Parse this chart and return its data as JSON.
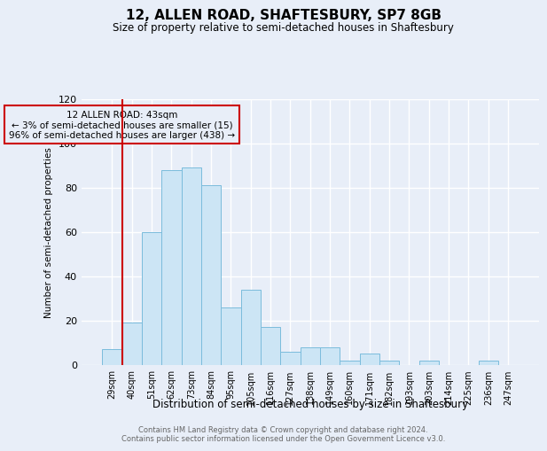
{
  "title": "12, ALLEN ROAD, SHAFTESBURY, SP7 8GB",
  "subtitle": "Size of property relative to semi-detached houses in Shaftesbury",
  "xlabel": "Distribution of semi-detached houses by size in Shaftesbury",
  "ylabel": "Number of semi-detached properties",
  "bar_labels": [
    "29sqm",
    "40sqm",
    "51sqm",
    "62sqm",
    "73sqm",
    "84sqm",
    "95sqm",
    "105sqm",
    "116sqm",
    "127sqm",
    "138sqm",
    "149sqm",
    "160sqm",
    "171sqm",
    "182sqm",
    "193sqm",
    "203sqm",
    "214sqm",
    "225sqm",
    "236sqm",
    "247sqm"
  ],
  "bar_values": [
    7,
    19,
    60,
    88,
    89,
    81,
    26,
    34,
    17,
    6,
    8,
    8,
    2,
    5,
    2,
    0,
    2,
    0,
    0,
    2,
    0
  ],
  "bar_color": "#cce5f5",
  "bar_edge_color": "#7bbcdc",
  "ylim": [
    0,
    120
  ],
  "yticks": [
    0,
    20,
    40,
    60,
    80,
    100,
    120
  ],
  "vline_x_index": 1,
  "vline_color": "#cc0000",
  "annotation_title": "12 ALLEN ROAD: 43sqm",
  "annotation_line1": "← 3% of semi-detached houses are smaller (15)",
  "annotation_line2": "96% of semi-detached houses are larger (438) →",
  "annotation_box_edge_color": "#cc0000",
  "footer_line1": "Contains HM Land Registry data © Crown copyright and database right 2024.",
  "footer_line2": "Contains public sector information licensed under the Open Government Licence v3.0.",
  "background_color": "#e8eef8",
  "grid_color": "#ffffff"
}
